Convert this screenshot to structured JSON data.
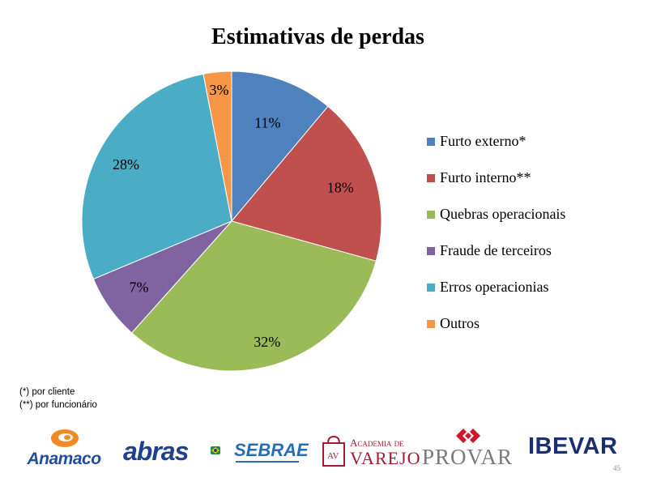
{
  "title": "Estimativas de perdas",
  "chart_data": {
    "type": "pie",
    "title": "Estimativas de perdas",
    "legend_position": "right",
    "slices": [
      {
        "label": "Furto externo*",
        "value": 11,
        "display": "11%",
        "color": "#4F81BD"
      },
      {
        "label": "Furto interno**",
        "value": 18,
        "display": "18%",
        "color": "#C0504D"
      },
      {
        "label": "Quebras operacionais",
        "value": 32,
        "display": "32%",
        "color": "#9BBB59"
      },
      {
        "label": "Fraude de terceiros",
        "value": 7,
        "display": "7%",
        "color": "#8064A2"
      },
      {
        "label": "Erros operacionias",
        "value": 28,
        "display": "28%",
        "color": "#4BACC6"
      },
      {
        "label": "Outros",
        "value": 3,
        "display": "3%",
        "color": "#F79646"
      }
    ]
  },
  "footnotes": [
    "(*) por cliente",
    "(**) por funcionário"
  ],
  "logos": {
    "anamaco": "Anamaco",
    "abras": "abras",
    "sebrae": "SEBRAE",
    "academia_line1": "Academia de",
    "academia_line2": "Varejo",
    "academia_mark": "AV",
    "provar": "PROVAR",
    "ibevar": "IBEVAR"
  },
  "page_number": "45"
}
